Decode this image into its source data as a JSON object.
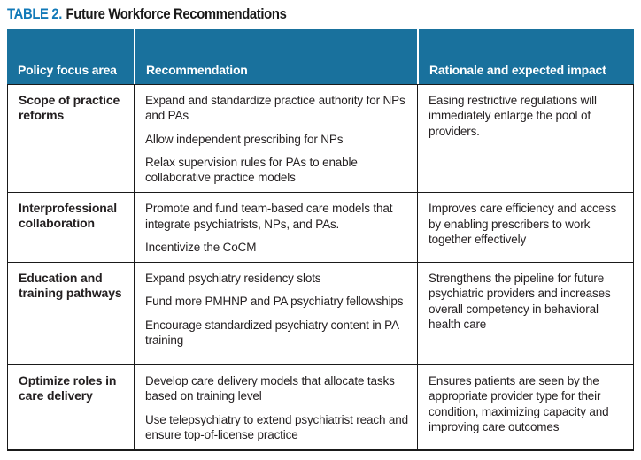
{
  "title": {
    "label": "TABLE 2.",
    "text": "Future Workforce Recommendations"
  },
  "colors": {
    "header_bg": "#19719d",
    "title_accent": "#1179b8",
    "border": "#1a1a1a",
    "header_text": "#ffffff",
    "body_text": "#231f20"
  },
  "table": {
    "columns": [
      "Policy focus area",
      "Recommendation",
      "Rationale and expected impact"
    ],
    "rows": [
      {
        "focus": "Scope of practice reforms",
        "recommendations": [
          "Expand and standardize practice authority for NPs and PAs",
          "Allow independent prescribing for NPs",
          "Relax supervision rules for PAs to enable collaborative practice models"
        ],
        "rationale": "Easing restrictive regulations will immediately enlarge the pool of providers."
      },
      {
        "focus": "Interprofessional collaboration",
        "recommendations": [
          "Promote and fund team-based care models that integrate psychiatrists, NPs, and PAs.",
          "Incentivize the CoCM"
        ],
        "rationale": "Improves care efficiency and access by enabling prescribers to work together effectively"
      },
      {
        "focus": "Education and training pathways",
        "recommendations": [
          "Expand psychiatry residency slots",
          "Fund more PMHNP and PA psychiatry fellowships",
          "Encourage standardized psychiatry content in PA training"
        ],
        "rationale": "Strengthens the pipeline for future psychiatric providers and increases overall competency in behavioral health care"
      },
      {
        "focus": "Optimize roles in care delivery",
        "recommendations": [
          "Develop care delivery models that allocate tasks based on training level",
          "Use telepsychiatry to extend psychiatrist reach and ensure top-of-license practice"
        ],
        "rationale": "Ensures patients are seen by the appropriate provider type for their condition, maximizing capacity and improving care outcomes"
      }
    ]
  }
}
